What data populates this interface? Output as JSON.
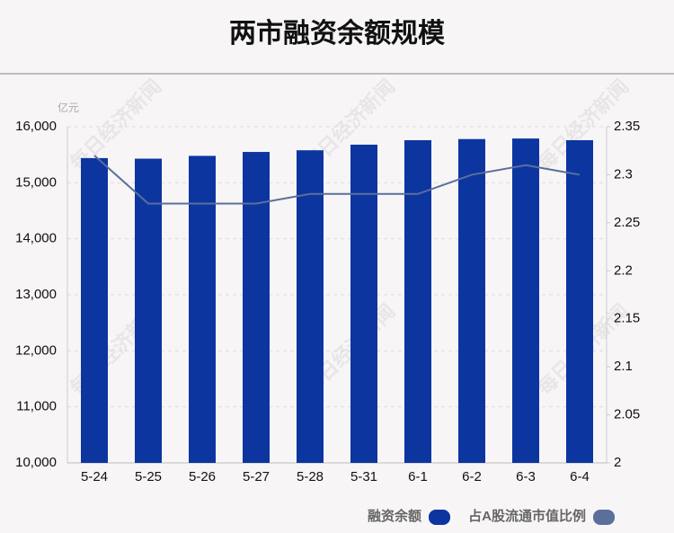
{
  "chart_data": {
    "type": "bar_line",
    "title": "两市融资余额规模",
    "y_unit": "亿元",
    "watermark": "每日经济新闻",
    "categories": [
      "5-24",
      "5-25",
      "5-26",
      "5-27",
      "5-28",
      "5-31",
      "6-1",
      "6-2",
      "6-3",
      "6-4"
    ],
    "series": [
      {
        "name": "融资余额",
        "type": "bar",
        "color": "#0c35a0",
        "values": [
          15440,
          15430,
          15480,
          15550,
          15580,
          15680,
          15760,
          15780,
          15790,
          15760
        ]
      },
      {
        "name": "占A股流通市值比例",
        "type": "line",
        "axis": "y2",
        "color": "#5b6f9b",
        "values": [
          2.32,
          2.27,
          2.27,
          2.27,
          2.28,
          2.28,
          2.28,
          2.3,
          2.31,
          2.3
        ]
      }
    ],
    "ylim": [
      10000,
      16000
    ],
    "yticks": [
      {
        "value": 10000,
        "label": "10,000"
      },
      {
        "value": 11000,
        "label": "11,000"
      },
      {
        "value": 12000,
        "label": "12,000"
      },
      {
        "value": 13000,
        "label": "13,000"
      },
      {
        "value": 14000,
        "label": "14,000"
      },
      {
        "value": 15000,
        "label": "15,000"
      },
      {
        "value": 16000,
        "label": "16,000"
      }
    ],
    "y2lim": [
      2,
      2.35
    ],
    "y2ticks": [
      2,
      2.05,
      2.1,
      2.15,
      2.2,
      2.25,
      2.3,
      2.35
    ],
    "grid": true,
    "legend": "bottom-right"
  }
}
